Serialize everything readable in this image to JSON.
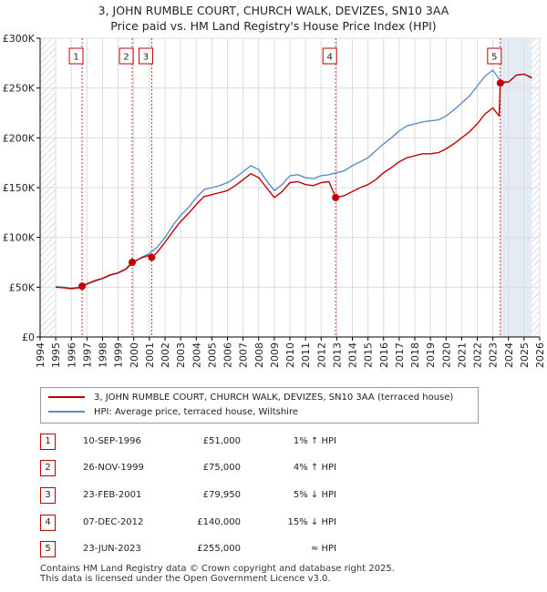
{
  "title": {
    "line1": "3, JOHN RUMBLE COURT, CHURCH WALK, DEVIZES, SN10 3AA",
    "line2": "Price paid vs. HM Land Registry's House Price Index (HPI)"
  },
  "legend": {
    "property_label": "3, JOHN RUMBLE COURT, CHURCH WALK, DEVIZES, SN10 3AA (terraced house)",
    "hpi_label": "HPI: Average price, terraced house, Wiltshire"
  },
  "colors": {
    "property": "#c00000",
    "hpi": "#5b8ec4",
    "grid": "#dcdcdc",
    "plot_bg": "#ffffff",
    "shade": "#e4ebf5",
    "hatch": "#c8c8c8",
    "marker_border": "#c00000"
  },
  "transactions": [
    {
      "n": "1",
      "date": "10-SEP-1996",
      "price": "£51,000",
      "hpi": "1% ↑ HPI"
    },
    {
      "n": "2",
      "date": "26-NOV-1999",
      "price": "£75,000",
      "hpi": "4% ↑ HPI"
    },
    {
      "n": "3",
      "date": "23-FEB-2001",
      "price": "£79,950",
      "hpi": "5% ↓ HPI"
    },
    {
      "n": "4",
      "date": "07-DEC-2012",
      "price": "£140,000",
      "hpi": "15% ↓ HPI"
    },
    {
      "n": "5",
      "date": "23-JUN-2023",
      "price": "£255,000",
      "hpi": "≈ HPI"
    }
  ],
  "footer": {
    "line1": "Contains HM Land Registry data © Crown copyright and database right 2025.",
    "line2": "This data is licensed under the Open Government Licence v3.0."
  },
  "chart_data": {
    "type": "line",
    "title": "3, JOHN RUMBLE COURT, CHURCH WALK, DEVIZES, SN10 3AA",
    "subtitle": "Price paid vs. HM Land Registry's House Price Index (HPI)",
    "xlabel": "",
    "ylabel": "",
    "xlim": [
      1994,
      2026
    ],
    "ylim": [
      0,
      300000
    ],
    "data_start": 1995.0,
    "data_end": 2025.5,
    "y_ticks": [
      {
        "value": 0,
        "label": "£0"
      },
      {
        "value": 50000,
        "label": "£50K"
      },
      {
        "value": 100000,
        "label": "£100K"
      },
      {
        "value": 150000,
        "label": "£150K"
      },
      {
        "value": 200000,
        "label": "£200K"
      },
      {
        "value": 250000,
        "label": "£250K"
      },
      {
        "value": 300000,
        "label": "£300K"
      }
    ],
    "x_ticks": [
      "1994",
      "1995",
      "1996",
      "1997",
      "1998",
      "1999",
      "2000",
      "2001",
      "2002",
      "2003",
      "2004",
      "2005",
      "2006",
      "2007",
      "2008",
      "2009",
      "2010",
      "2011",
      "2012",
      "2013",
      "2014",
      "2015",
      "2016",
      "2017",
      "2018",
      "2019",
      "2020",
      "2021",
      "2022",
      "2023",
      "2024",
      "2025",
      "2026"
    ],
    "sale_markers": [
      {
        "n": "1",
        "x": 1996.69,
        "y": 51000
      },
      {
        "n": "2",
        "x": 1999.9,
        "y": 75000
      },
      {
        "n": "3",
        "x": 2001.15,
        "y": 79950
      },
      {
        "n": "4",
        "x": 2012.93,
        "y": 140000
      },
      {
        "n": "5",
        "x": 2023.48,
        "y": 255000
      }
    ],
    "series": [
      {
        "name": "HPI: Average price, terraced house, Wiltshire",
        "points": [
          [
            1995.0,
            50500
          ],
          [
            1995.5,
            50000
          ],
          [
            1996.0,
            49000
          ],
          [
            1996.5,
            50000
          ],
          [
            1997.0,
            53000
          ],
          [
            1997.5,
            56000
          ],
          [
            1998.0,
            58500
          ],
          [
            1998.5,
            62000
          ],
          [
            1999.0,
            64000
          ],
          [
            1999.5,
            68000
          ],
          [
            2000.0,
            75000
          ],
          [
            2000.5,
            80000
          ],
          [
            2001.0,
            84000
          ],
          [
            2001.5,
            90000
          ],
          [
            2002.0,
            100000
          ],
          [
            2002.5,
            112000
          ],
          [
            2003.0,
            122000
          ],
          [
            2003.5,
            130000
          ],
          [
            2004.0,
            140000
          ],
          [
            2004.5,
            148000
          ],
          [
            2005.0,
            150000
          ],
          [
            2005.5,
            152000
          ],
          [
            2006.0,
            155000
          ],
          [
            2006.5,
            160000
          ],
          [
            2007.0,
            166000
          ],
          [
            2007.5,
            172000
          ],
          [
            2008.0,
            168000
          ],
          [
            2008.5,
            157000
          ],
          [
            2009.0,
            147000
          ],
          [
            2009.5,
            153000
          ],
          [
            2010.0,
            162000
          ],
          [
            2010.5,
            163000
          ],
          [
            2011.0,
            160000
          ],
          [
            2011.5,
            159000
          ],
          [
            2012.0,
            162000
          ],
          [
            2012.5,
            163000
          ],
          [
            2013.0,
            165000
          ],
          [
            2013.5,
            167000
          ],
          [
            2014.0,
            172000
          ],
          [
            2014.5,
            176000
          ],
          [
            2015.0,
            180000
          ],
          [
            2015.5,
            187000
          ],
          [
            2016.0,
            194000
          ],
          [
            2016.5,
            200000
          ],
          [
            2017.0,
            207000
          ],
          [
            2017.5,
            212000
          ],
          [
            2018.0,
            214000
          ],
          [
            2018.5,
            216000
          ],
          [
            2019.0,
            217000
          ],
          [
            2019.5,
            218000
          ],
          [
            2020.0,
            222000
          ],
          [
            2020.5,
            228000
          ],
          [
            2021.0,
            235000
          ],
          [
            2021.5,
            242000
          ],
          [
            2022.0,
            252000
          ],
          [
            2022.5,
            262000
          ],
          [
            2023.0,
            268000
          ],
          [
            2023.5,
            257000
          ],
          [
            2024.0,
            256000
          ],
          [
            2024.5,
            263000
          ],
          [
            2025.0,
            264000
          ],
          [
            2025.5,
            261000
          ]
        ]
      },
      {
        "name": "3, JOHN RUMBLE COURT, CHURCH WALK, DEVIZES, SN10 3AA (terraced house)",
        "points": [
          [
            1995.0,
            50000
          ],
          [
            1995.5,
            49500
          ],
          [
            1996.0,
            48500
          ],
          [
            1996.5,
            49500
          ],
          [
            1996.69,
            51000
          ],
          [
            1997.0,
            53500
          ],
          [
            1997.5,
            56500
          ],
          [
            1998.0,
            59000
          ],
          [
            1998.5,
            62500
          ],
          [
            1999.0,
            64500
          ],
          [
            1999.5,
            68500
          ],
          [
            1999.9,
            75000
          ],
          [
            2000.5,
            79500
          ],
          [
            2001.0,
            82000
          ],
          [
            2001.15,
            79950
          ],
          [
            2001.5,
            85000
          ],
          [
            2002.0,
            95000
          ],
          [
            2002.5,
            106000
          ],
          [
            2003.0,
            116000
          ],
          [
            2003.5,
            124000
          ],
          [
            2004.0,
            133000
          ],
          [
            2004.5,
            141000
          ],
          [
            2005.0,
            143000
          ],
          [
            2005.5,
            145000
          ],
          [
            2006.0,
            147000
          ],
          [
            2006.5,
            152000
          ],
          [
            2007.0,
            158000
          ],
          [
            2007.5,
            164000
          ],
          [
            2008.0,
            160000
          ],
          [
            2008.5,
            150000
          ],
          [
            2009.0,
            140000
          ],
          [
            2009.5,
            146000
          ],
          [
            2010.0,
            155000
          ],
          [
            2010.5,
            156000
          ],
          [
            2011.0,
            153000
          ],
          [
            2011.5,
            152000
          ],
          [
            2012.0,
            155000
          ],
          [
            2012.5,
            156000
          ],
          [
            2012.93,
            140000
          ],
          [
            2013.5,
            142000
          ],
          [
            2014.0,
            146000
          ],
          [
            2014.5,
            150000
          ],
          [
            2015.0,
            153000
          ],
          [
            2015.5,
            158000
          ],
          [
            2016.0,
            165000
          ],
          [
            2016.5,
            170000
          ],
          [
            2017.0,
            176000
          ],
          [
            2017.5,
            180000
          ],
          [
            2018.0,
            182000
          ],
          [
            2018.5,
            184000
          ],
          [
            2019.0,
            184000
          ],
          [
            2019.5,
            185000
          ],
          [
            2020.0,
            189000
          ],
          [
            2020.5,
            194000
          ],
          [
            2021.0,
            200000
          ],
          [
            2021.5,
            206000
          ],
          [
            2022.0,
            214000
          ],
          [
            2022.5,
            224000
          ],
          [
            2023.0,
            230000
          ],
          [
            2023.4,
            222000
          ],
          [
            2023.48,
            255000
          ],
          [
            2024.0,
            256000
          ],
          [
            2024.5,
            263000
          ],
          [
            2025.0,
            264000
          ],
          [
            2025.5,
            260000
          ]
        ]
      }
    ]
  }
}
